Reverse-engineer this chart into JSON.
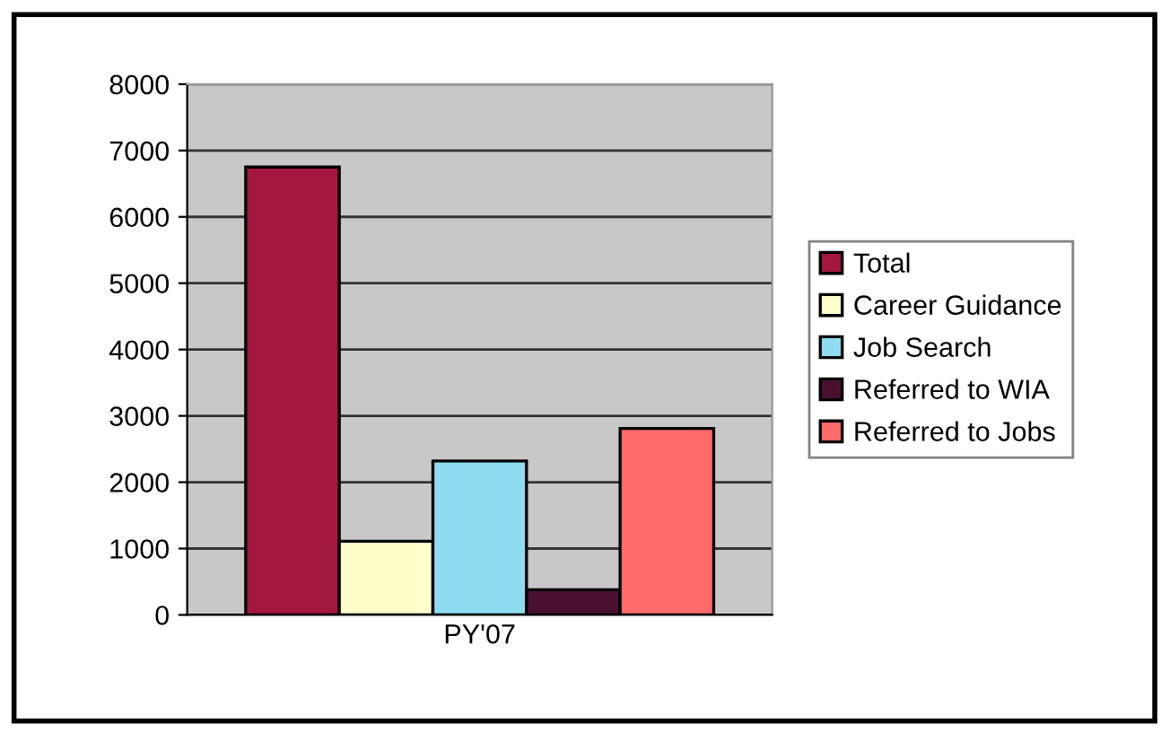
{
  "chart_data": {
    "type": "bar",
    "categories": [
      "PY'07"
    ],
    "series": [
      {
        "name": "Total",
        "color": "#a3173f",
        "values": [
          6750
        ]
      },
      {
        "name": "Career Guidance",
        "color": "#ffffcc",
        "values": [
          1110
        ]
      },
      {
        "name": "Job Search",
        "color": "#8fdcf0",
        "values": [
          2320
        ]
      },
      {
        "name": "Referred to WIA",
        "color": "#4a1030",
        "values": [
          380
        ]
      },
      {
        "name": "Referred to Jobs",
        "color": "#ff6a6a",
        "values": [
          2810
        ]
      }
    ],
    "ylim": [
      0,
      8000
    ],
    "yticks": [
      0,
      1000,
      2000,
      3000,
      4000,
      5000,
      6000,
      7000,
      8000
    ],
    "grid": "y",
    "legend": "right"
  }
}
